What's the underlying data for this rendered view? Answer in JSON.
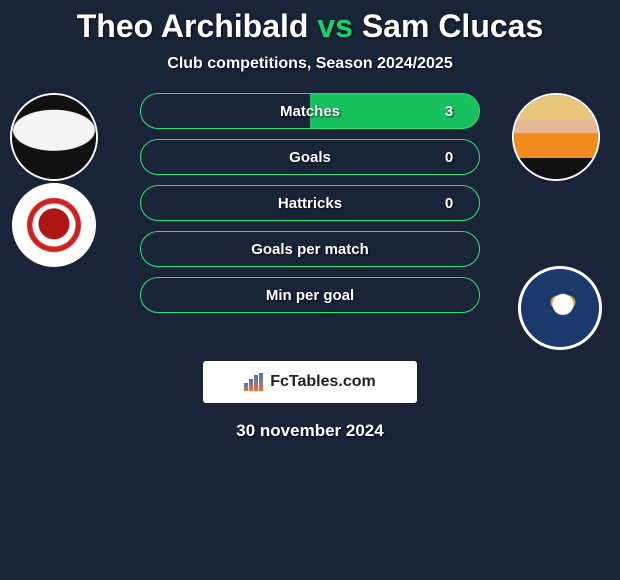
{
  "title": {
    "player1": "Theo Archibald",
    "vs": "vs",
    "player2": "Sam Clucas"
  },
  "subtitle": "Club competitions, Season 2024/2025",
  "rows": [
    {
      "label": "Matches",
      "left": "",
      "right": "3",
      "fill": "right"
    },
    {
      "label": "Goals",
      "left": "",
      "right": "0",
      "fill": "none"
    },
    {
      "label": "Hattricks",
      "left": "",
      "right": "0",
      "fill": "none"
    },
    {
      "label": "Goals per match",
      "left": "",
      "right": "",
      "fill": "none"
    },
    {
      "label": "Min per goal",
      "left": "",
      "right": "",
      "fill": "none"
    }
  ],
  "branding": "FcTables.com",
  "date": "30 november 2024",
  "colors": {
    "bg": "#192438",
    "accent": "#18d169",
    "pill_border": "#20e676",
    "pill_fill": "#17c15d",
    "white": "#ffffff"
  }
}
